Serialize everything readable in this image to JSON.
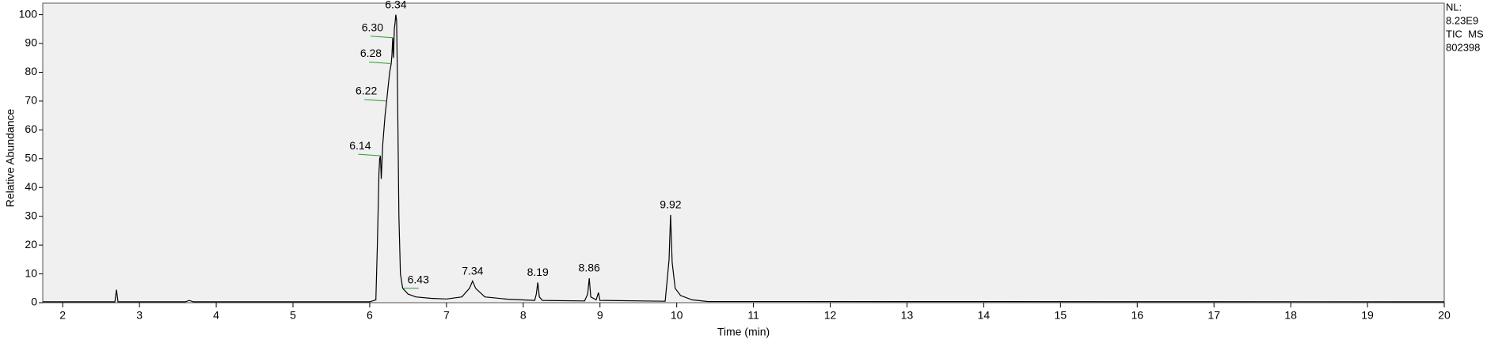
{
  "chart_data": {
    "type": "line",
    "x_label": "Time (min)",
    "y_label": "Relative Abundance",
    "info": [
      "NL:",
      "8.23E9",
      "TIC  MS",
      "802398"
    ],
    "xlim": [
      1.74,
      20
    ],
    "ylim": [
      0,
      104
    ],
    "xticks": [
      2,
      3,
      4,
      5,
      6,
      7,
      8,
      9,
      10,
      11,
      12,
      13,
      14,
      15,
      16,
      17,
      18,
      19,
      20
    ],
    "yticks": [
      0,
      10,
      20,
      30,
      40,
      50,
      60,
      70,
      80,
      90,
      100
    ],
    "series": [
      {
        "color": "#000000",
        "x": [
          1.74,
          2.6,
          2.68,
          2.7,
          2.72,
          3.6,
          3.65,
          3.7,
          6.0,
          6.08,
          6.1,
          6.12,
          6.13,
          6.14,
          6.15,
          6.17,
          6.2,
          6.22,
          6.24,
          6.26,
          6.28,
          6.29,
          6.3,
          6.31,
          6.32,
          6.33,
          6.34,
          6.35,
          6.36,
          6.38,
          6.4,
          6.43,
          6.5,
          6.6,
          6.8,
          7.0,
          7.2,
          7.3,
          7.34,
          7.38,
          7.5,
          7.8,
          8.15,
          8.17,
          8.19,
          8.21,
          8.25,
          8.8,
          8.84,
          8.86,
          8.88,
          8.95,
          8.98,
          9.0,
          9.85,
          9.9,
          9.92,
          9.94,
          9.98,
          10.05,
          10.2,
          10.4,
          20
        ],
        "values": [
          0.3,
          0.3,
          0.3,
          4.5,
          0.3,
          0.3,
          0.8,
          0.3,
          0.3,
          1,
          20,
          45,
          50,
          51,
          43,
          55,
          65,
          70,
          75,
          80,
          83,
          86,
          92,
          85,
          95,
          97,
          100,
          98,
          80,
          30,
          10,
          5,
          3,
          2,
          1.5,
          1.3,
          2,
          5,
          7.5,
          5,
          2,
          1.2,
          0.8,
          3,
          7,
          2,
          0.8,
          0.6,
          3,
          8.5,
          2,
          1,
          3.5,
          0.8,
          0.5,
          15,
          30.5,
          14,
          5,
          2.5,
          1,
          0.4,
          0.3
        ]
      }
    ],
    "peaks": [
      {
        "label": "6.34",
        "x": 6.34,
        "y": 100
      },
      {
        "label": "6.30",
        "x": 6.3,
        "y": 92
      },
      {
        "label": "6.28",
        "x": 6.28,
        "y": 83
      },
      {
        "label": "6.22",
        "x": 6.22,
        "y": 70
      },
      {
        "label": "6.14",
        "x": 6.14,
        "y": 51
      },
      {
        "label": "6.43",
        "x": 6.43,
        "y": 5
      },
      {
        "label": "7.34",
        "x": 7.34,
        "y": 7.5
      },
      {
        "label": "8.19",
        "x": 8.19,
        "y": 7
      },
      {
        "label": "8.86",
        "x": 8.86,
        "y": 8.5
      },
      {
        "label": "9.92",
        "x": 9.92,
        "y": 30.5
      }
    ]
  }
}
